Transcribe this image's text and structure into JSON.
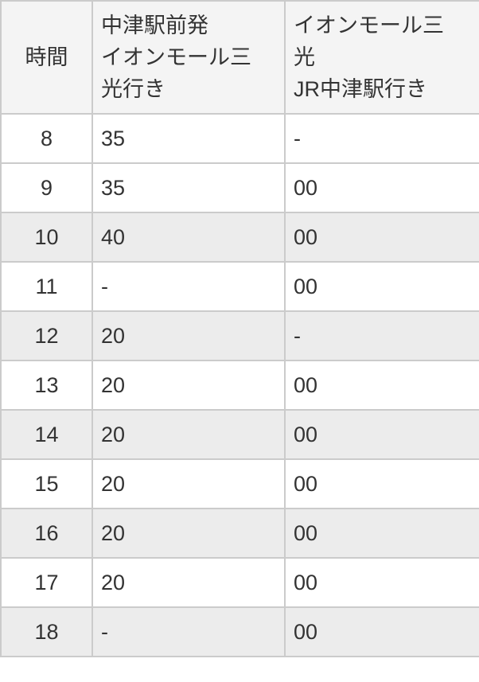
{
  "colors": {
    "header_bg": "#f4f4f4",
    "stripe_bg": "#ececec",
    "row_bg": "#ffffff",
    "border": "#cbcbcb",
    "text": "#333333"
  },
  "table": {
    "columns": [
      {
        "key": "hour",
        "label": "時間"
      },
      {
        "key": "outbound",
        "label": "中津駅前発\nイオンモール三\n光行き"
      },
      {
        "key": "inbound",
        "label": "イオンモール三\n光\nJR中津駅行き"
      }
    ],
    "rows": [
      {
        "hour": "8",
        "outbound": "35",
        "inbound": "-",
        "shaded": false
      },
      {
        "hour": "9",
        "outbound": "35",
        "inbound": "00",
        "shaded": false
      },
      {
        "hour": "10",
        "outbound": "40",
        "inbound": "00",
        "shaded": true
      },
      {
        "hour": "11",
        "outbound": "-",
        "inbound": "00",
        "shaded": false
      },
      {
        "hour": "12",
        "outbound": "20",
        "inbound": "-",
        "shaded": true
      },
      {
        "hour": "13",
        "outbound": "20",
        "inbound": "00",
        "shaded": false
      },
      {
        "hour": "14",
        "outbound": "20",
        "inbound": "00",
        "shaded": true
      },
      {
        "hour": "15",
        "outbound": "20",
        "inbound": "00",
        "shaded": false
      },
      {
        "hour": "16",
        "outbound": "20",
        "inbound": "00",
        "shaded": true
      },
      {
        "hour": "17",
        "outbound": "20",
        "inbound": "00",
        "shaded": false
      },
      {
        "hour": "18",
        "outbound": "-",
        "inbound": "00",
        "shaded": true
      }
    ]
  }
}
